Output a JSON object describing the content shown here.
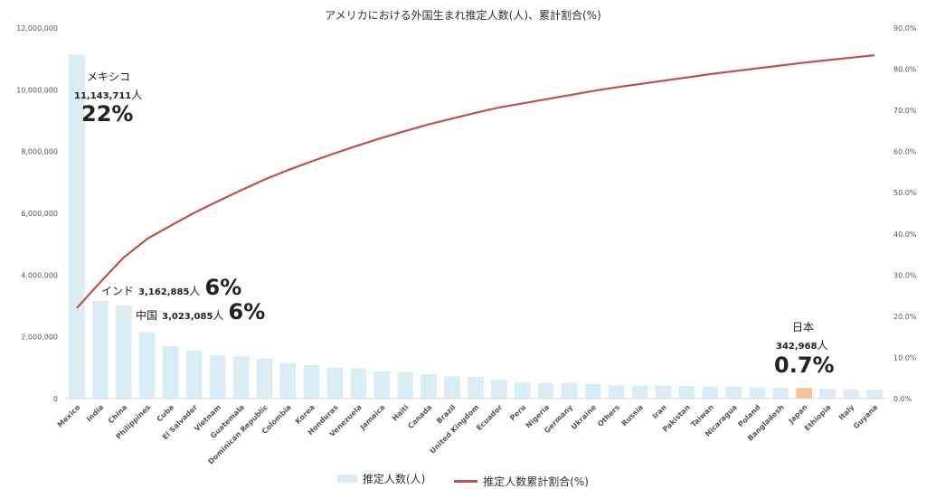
{
  "colors": {
    "bar": "#daedf4",
    "highlight_bar": "#f8c394",
    "line": "#c0504d",
    "axis_text": "#555555",
    "gridline": "#d9d9d9"
  },
  "chart_data": {
    "type": "bar+line",
    "title": "アメリカにおける外国生まれ推定人数(人)、累計割合(%)",
    "categories": [
      "Mexico",
      "India",
      "China",
      "Philippines",
      "Cuba",
      "El Salvador",
      "Vietnam",
      "Guatemala",
      "Dominican Republic",
      "Colombia",
      "Korea",
      "Honduras",
      "Venezuela",
      "Jamaica",
      "Haiti",
      "Canada",
      "Brazil",
      "United Kingdom",
      "Ecuador",
      "Peru",
      "Nigeria",
      "Germany",
      "Ukraine",
      "Others",
      "Russia",
      "Iran",
      "Pakistan",
      "Taiwan",
      "Nicaragua",
      "Poland",
      "Bangladesh",
      "Japan",
      "Ethiopia",
      "Italy",
      "Guyana"
    ],
    "series": [
      {
        "name": "推定人数(人)",
        "axis": "left",
        "type": "bar",
        "values": [
          11143711,
          3162885,
          3023085,
          2150000,
          1700000,
          1550000,
          1400000,
          1370000,
          1300000,
          1150000,
          1080000,
          1000000,
          980000,
          880000,
          860000,
          800000,
          720000,
          700000,
          620000,
          520000,
          510000,
          510000,
          480000,
          430000,
          420000,
          420000,
          410000,
          390000,
          390000,
          370000,
          350000,
          342968,
          320000,
          300000,
          290000
        ],
        "highlight_index": 31
      },
      {
        "name": "推定人数累計割合(%)",
        "axis": "right",
        "type": "line",
        "values": [
          22.0,
          28.3,
          34.3,
          38.8,
          42.0,
          45.1,
          47.9,
          50.6,
          53.2,
          55.5,
          57.6,
          59.6,
          61.5,
          63.3,
          65.0,
          66.6,
          68.0,
          69.4,
          70.7,
          71.7,
          72.7,
          73.7,
          74.7,
          75.6,
          76.4,
          77.2,
          78.0,
          78.8,
          79.5,
          80.2,
          80.9,
          81.6,
          82.2,
          82.8,
          83.4
        ]
      }
    ],
    "y_left": {
      "min": 0,
      "max": 12000000,
      "step": 2000000,
      "ticks": [
        "0",
        "2,000,000",
        "4,000,000",
        "6,000,000",
        "8,000,000",
        "10,000,000",
        "12,000,000"
      ]
    },
    "y_right": {
      "min": 0,
      "max": 90,
      "step": 10,
      "ticks": [
        "0.0%",
        "10.0%",
        "20.0%",
        "30.0%",
        "40.0%",
        "50.0%",
        "60.0%",
        "70.0%",
        "80.0%",
        "90.0%"
      ]
    },
    "gridlines": false,
    "legend_position": "bottom",
    "annotations": {
      "mexico": {
        "name": "メキシコ",
        "number": "11,143,711",
        "unit": "人",
        "pct": "22%"
      },
      "india": {
        "name": "インド",
        "number": "3,162,885",
        "unit": "人",
        "pct": "6%"
      },
      "china": {
        "name": "中国",
        "number": "3,023,085",
        "unit": "人",
        "pct": "6%"
      },
      "japan": {
        "name": "日本",
        "number": "342,968",
        "unit": "人",
        "pct": "0.7%"
      }
    }
  }
}
